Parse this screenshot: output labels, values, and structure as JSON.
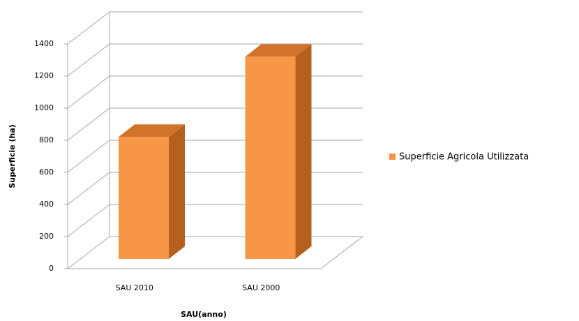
{
  "chart_data": {
    "type": "bar3d",
    "categories": [
      "SAU 2010",
      "SAU 2000"
    ],
    "series": [
      {
        "name": "Superficie Agricola Utilizzata",
        "color": "#f79646",
        "values": [
          760,
          1260
        ]
      }
    ],
    "ylim": [
      0,
      1400
    ],
    "yticks": [
      0,
      200,
      400,
      600,
      800,
      1000,
      1200,
      1400
    ],
    "y_label": "Superficie (ha)",
    "x_label": "SAU(anno)",
    "grid": true,
    "legend": "right"
  }
}
